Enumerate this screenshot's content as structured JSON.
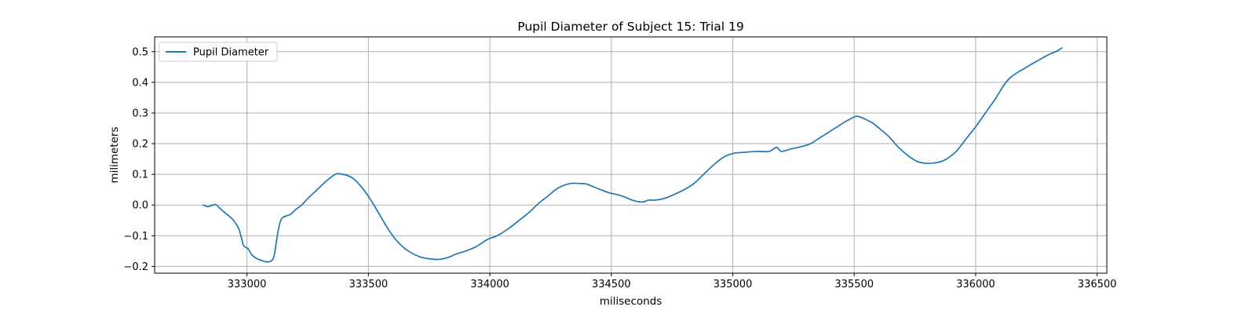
{
  "chart_data": {
    "type": "line",
    "title": "Pupil Diameter of Subject 15: Trial 19",
    "xlabel": "miliseconds",
    "ylabel": "milimeters",
    "xlim": [
      332620,
      336540
    ],
    "ylim": [
      -0.222,
      0.548
    ],
    "xticks": [
      333000,
      333500,
      334000,
      334500,
      335000,
      335500,
      336000,
      336500
    ],
    "yticks": [
      -0.2,
      -0.1,
      0.0,
      0.1,
      0.2,
      0.3,
      0.4,
      0.5
    ],
    "grid": true,
    "legend": {
      "position": "upper-left",
      "entries": [
        "Pupil Diameter"
      ]
    },
    "series": [
      {
        "name": "Pupil Diameter",
        "color": "#1f77b4",
        "x": [
          332820,
          332840,
          332870,
          332885,
          332905,
          332925,
          332945,
          332965,
          332975,
          332985,
          332995,
          333005,
          333020,
          333040,
          333065,
          333090,
          333110,
          333125,
          333135,
          333145,
          333160,
          333180,
          333200,
          333225,
          333255,
          333285,
          333315,
          333345,
          333370,
          333395,
          333415,
          333440,
          333465,
          333490,
          333515,
          333545,
          333575,
          333605,
          333640,
          333675,
          333710,
          333750,
          333790,
          333830,
          333860,
          333900,
          333945,
          333990,
          334030,
          334080,
          334120,
          334160,
          334200,
          334240,
          334280,
          334330,
          334375,
          334400,
          334450,
          334490,
          334520,
          334550,
          334590,
          334625,
          334655,
          334680,
          334720,
          334760,
          334800,
          334840,
          334880,
          334920,
          334960,
          335000,
          335050,
          335100,
          335150,
          335180,
          335200,
          335240,
          335280,
          335320,
          335360,
          335410,
          335460,
          335500,
          335520,
          335570,
          335600,
          335640,
          335680,
          335720,
          335760,
          335800,
          335850,
          335880,
          335920,
          335960,
          336000,
          336040,
          336080,
          336120,
          336150,
          336200,
          336250,
          336300,
          336330,
          336355
        ],
        "y": [
          0.0,
          -0.005,
          0.002,
          -0.008,
          -0.022,
          -0.035,
          -0.05,
          -0.075,
          -0.1,
          -0.13,
          -0.138,
          -0.142,
          -0.162,
          -0.174,
          -0.182,
          -0.185,
          -0.17,
          -0.1,
          -0.06,
          -0.042,
          -0.036,
          -0.03,
          -0.015,
          0.0,
          0.025,
          0.047,
          0.07,
          0.09,
          0.102,
          0.1,
          0.096,
          0.085,
          0.065,
          0.04,
          0.01,
          -0.03,
          -0.07,
          -0.105,
          -0.135,
          -0.155,
          -0.168,
          -0.175,
          -0.177,
          -0.17,
          -0.16,
          -0.15,
          -0.135,
          -0.112,
          -0.1,
          -0.075,
          -0.05,
          -0.025,
          0.005,
          0.03,
          0.055,
          0.07,
          0.07,
          0.068,
          0.052,
          0.04,
          0.035,
          0.028,
          0.015,
          0.01,
          0.016,
          0.016,
          0.022,
          0.035,
          0.05,
          0.07,
          0.1,
          0.13,
          0.155,
          0.168,
          0.172,
          0.175,
          0.175,
          0.188,
          0.175,
          0.183,
          0.19,
          0.2,
          0.22,
          0.245,
          0.27,
          0.287,
          0.288,
          0.27,
          0.252,
          0.225,
          0.19,
          0.162,
          0.142,
          0.136,
          0.14,
          0.15,
          0.175,
          0.215,
          0.255,
          0.3,
          0.345,
          0.395,
          0.42,
          0.445,
          0.468,
          0.49,
          0.5,
          0.512
        ]
      }
    ]
  }
}
